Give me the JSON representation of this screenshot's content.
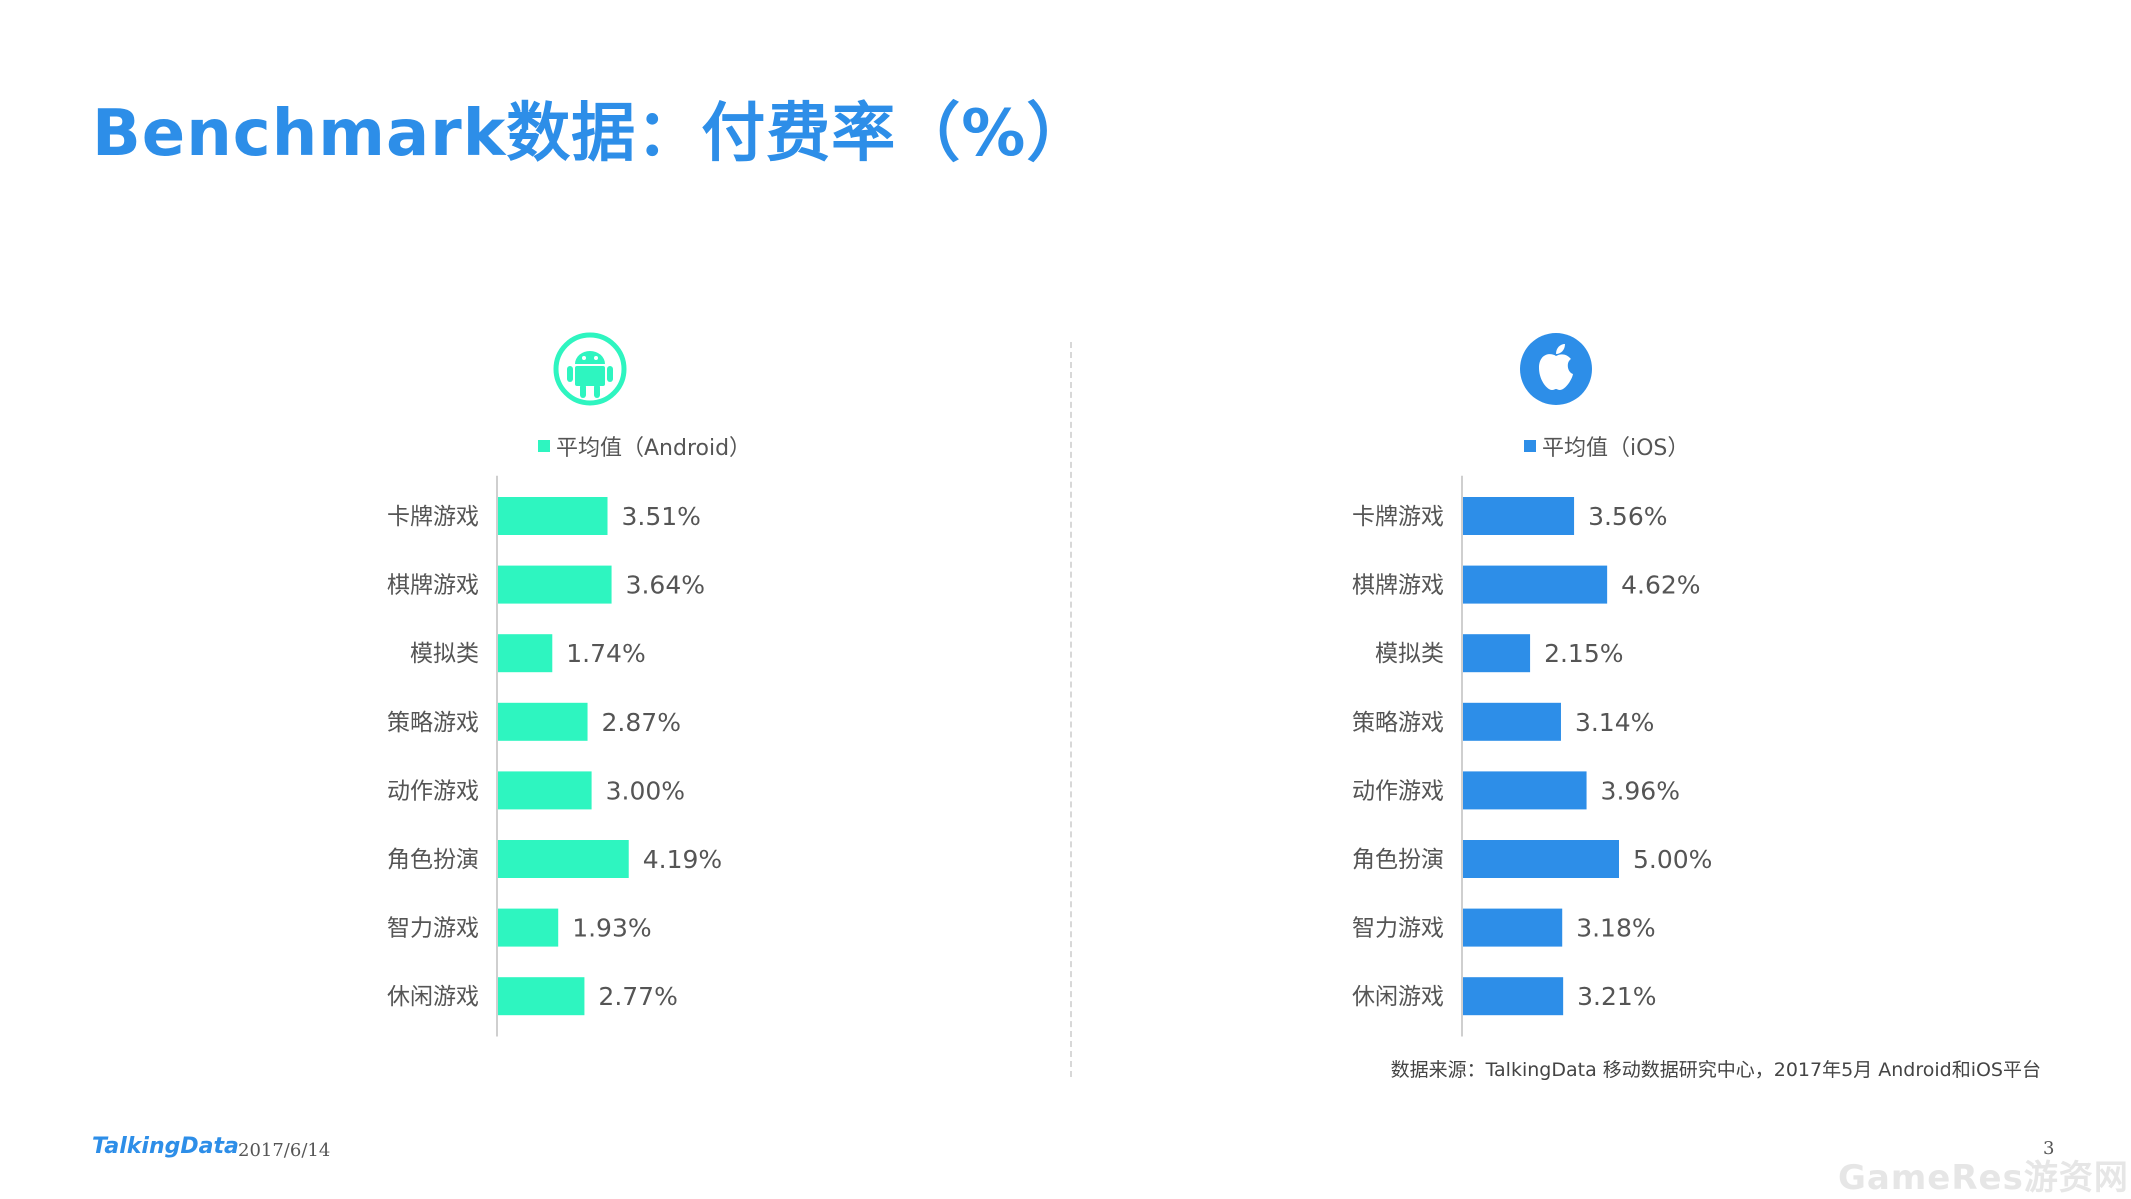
{
  "title": "Benchmark数据：付费率（%）",
  "colors": {
    "title": "#2d8ee8",
    "android": "#2ef5c0",
    "ios": "#2d8ee8",
    "axis": "#cfcfcf"
  },
  "icons": {
    "android": "android-robot-icon",
    "ios": "apple-logo-icon"
  },
  "chart_data": [
    {
      "type": "bar",
      "orientation": "horizontal",
      "legend": "平均值（Android）",
      "categories": [
        "卡牌游戏",
        "棋牌游戏",
        "模拟类",
        "策略游戏",
        "动作游戏",
        "角色扮演",
        "智力游戏",
        "休闲游戏"
      ],
      "values": [
        3.51,
        3.64,
        1.74,
        2.87,
        3.0,
        4.19,
        1.93,
        2.77
      ],
      "labels": [
        "3.51%",
        "3.64%",
        "1.74%",
        "2.87%",
        "3.00%",
        "4.19%",
        "1.93%",
        "2.77%"
      ],
      "color": "#2ef5c0"
    },
    {
      "type": "bar",
      "orientation": "horizontal",
      "legend": "平均值（iOS）",
      "categories": [
        "卡牌游戏",
        "棋牌游戏",
        "模拟类",
        "策略游戏",
        "动作游戏",
        "角色扮演",
        "智力游戏",
        "休闲游戏"
      ],
      "values": [
        3.56,
        4.62,
        2.15,
        3.14,
        3.96,
        5.0,
        3.18,
        3.21
      ],
      "labels": [
        "3.56%",
        "4.62%",
        "2.15%",
        "3.14%",
        "3.96%",
        "5.00%",
        "3.18%",
        "3.21%"
      ],
      "color": "#2d8ee8"
    }
  ],
  "source": "数据来源：TalkingData 移动数据研究中心，2017年5月 Android和iOS平台",
  "footer": {
    "brand": "TalkingData",
    "date": "2017/6/14",
    "page": "3"
  },
  "watermark": "GameRes游资网"
}
